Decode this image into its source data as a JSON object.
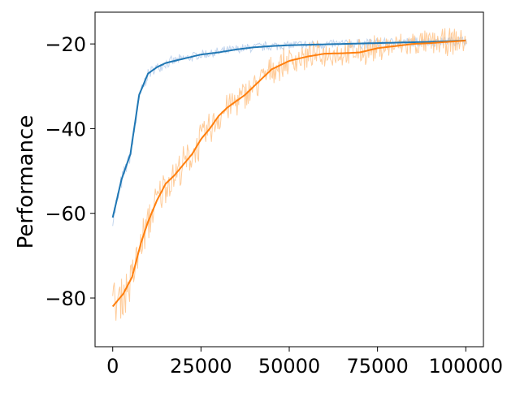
{
  "chart_data": {
    "type": "line",
    "title": "",
    "xlabel": "",
    "ylabel": "Performance",
    "xlim": [
      -5000,
      105000
    ],
    "ylim": [
      -91.5,
      -12.5
    ],
    "xticks": [
      0,
      25000,
      50000,
      75000,
      100000
    ],
    "xtick_labels": [
      "0",
      "25000",
      "50000",
      "75000",
      "100000"
    ],
    "yticks": [
      -80,
      -60,
      -40,
      -20
    ],
    "ytick_labels": [
      "−80",
      "−60",
      "−40",
      "−20"
    ],
    "grid": false,
    "legend": "none",
    "series": [
      {
        "color": "#1f77b4",
        "band_color": "#aec7e8",
        "x": [
          0,
          2500,
          5000,
          7500,
          10000,
          12500,
          15000,
          20000,
          25000,
          30000,
          35000,
          40000,
          45000,
          50000,
          60000,
          70000,
          80000,
          90000,
          100000
        ],
        "values": [
          -61,
          -52,
          -46,
          -32,
          -27,
          -25.5,
          -24.5,
          -23.5,
          -22.5,
          -22,
          -21.3,
          -20.8,
          -20.5,
          -20.3,
          -20.1,
          -19.9,
          -19.7,
          -19.5,
          -19.2
        ],
        "noise": 1.5
      },
      {
        "color": "#ff7f0e",
        "band_color": "#ffbb78",
        "x": [
          0,
          3000,
          5500,
          8000,
          10000,
          12500,
          15000,
          17500,
          20000,
          22500,
          25000,
          27500,
          30000,
          32500,
          35000,
          37500,
          40000,
          42500,
          45000,
          47500,
          50000,
          55000,
          60000,
          65000,
          70000,
          75000,
          80000,
          85000,
          90000,
          95000,
          100000
        ],
        "values": [
          -82,
          -79,
          -75,
          -67,
          -62,
          -57,
          -53,
          -51,
          -48.5,
          -46,
          -42.5,
          -40,
          -37,
          -35,
          -33.5,
          -32,
          -30,
          -28,
          -26,
          -25,
          -24,
          -23,
          -22.3,
          -22.2,
          -22,
          -21,
          -20.5,
          -20,
          -19.8,
          -19.5,
          -19.2
        ],
        "noise": 4
      }
    ]
  }
}
